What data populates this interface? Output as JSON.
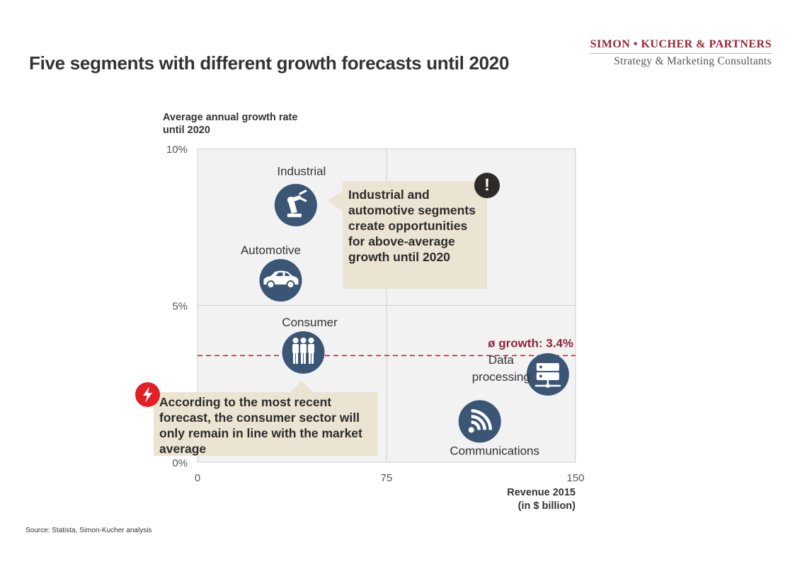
{
  "header": {
    "title": "Five segments with different growth forecasts until 2020",
    "brand_name": "SIMON • KUCHER & PARTNERS",
    "brand_tagline": "Strategy & Marketing Consultants"
  },
  "source": "Source: Statista, Simon-Kucher analysis",
  "colors": {
    "plot_bg": "#f2f2f2",
    "bubble": "#3b5675",
    "average_line": "#9b2335",
    "callout_bg": "#ece4d2",
    "warning_badge": "#2d2a28",
    "alert_badge": "#e31e24"
  },
  "callouts": {
    "industrial": "Industrial and automotive segments create opportunities for above-average growth until 2020",
    "consumer": "According to the most recent forecast, the consumer sector will only remain in line with the market average",
    "warning_glyph": "!",
    "alert_icon": "lightning-icon"
  },
  "chart_data": {
    "type": "scatter",
    "title": "",
    "ylabel": "Average annual growth rate until 2020",
    "xlabel": "Revenue 2015 (in $ billion)",
    "xlim": [
      0,
      150
    ],
    "ylim": [
      0,
      10
    ],
    "x_ticks": [
      {
        "value": 0,
        "label": "0"
      },
      {
        "value": 75,
        "label": "75"
      },
      {
        "value": 150,
        "label": "150"
      }
    ],
    "y_ticks": [
      {
        "value": 0,
        "label": "0%"
      },
      {
        "value": 5,
        "label": "5%"
      },
      {
        "value": 10,
        "label": "10%"
      }
    ],
    "grid": true,
    "average": {
      "value": 3.4,
      "label": "ø growth: 3.4%"
    },
    "points": [
      {
        "id": "industrial",
        "name": "Industrial",
        "x": 39,
        "y": 8.2,
        "icon": "robot-arm-icon"
      },
      {
        "id": "automotive",
        "name": "Automotive",
        "x": 33,
        "y": 5.8,
        "icon": "car-icon"
      },
      {
        "id": "consumer",
        "name": "Consumer",
        "x": 42,
        "y": 3.5,
        "icon": "people-icon"
      },
      {
        "id": "data-processing",
        "name": "Data processing",
        "x": 139,
        "y": 2.8,
        "icon": "server-icon"
      },
      {
        "id": "communications",
        "name": "Communications",
        "x": 112,
        "y": 1.3,
        "icon": "wifi-icon"
      }
    ]
  }
}
